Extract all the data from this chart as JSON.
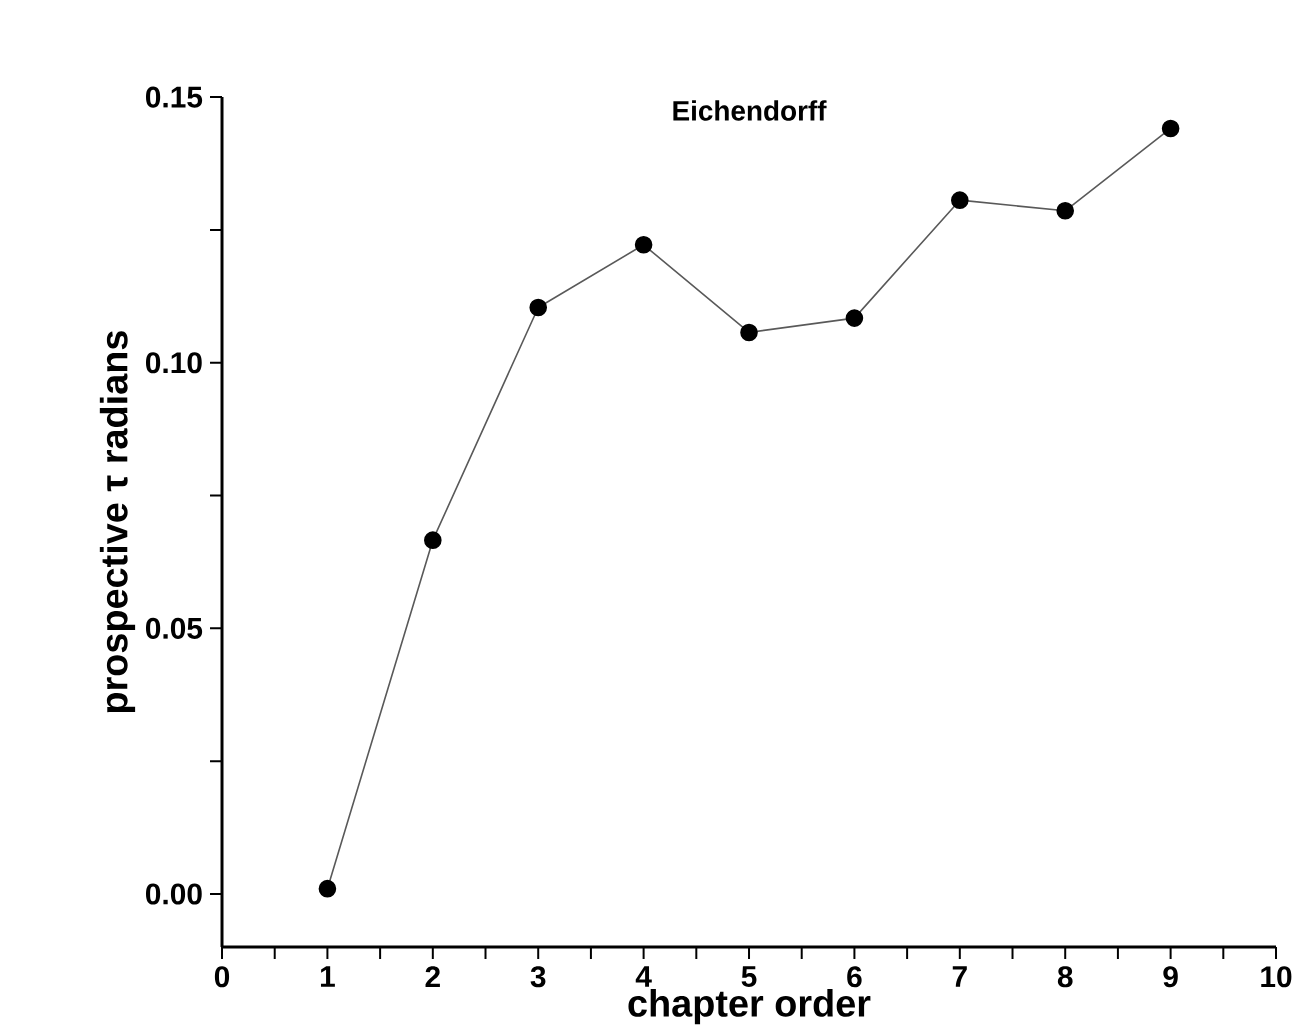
{
  "chart_data": {
    "type": "line",
    "title": "Eichendorff",
    "xlabel": "chapter order",
    "ylabel": "prospective τ radians",
    "x": [
      1,
      2,
      3,
      4,
      5,
      6,
      7,
      8,
      9
    ],
    "series": [
      {
        "color": "#000000",
        "values": [
          0.001,
          0.0666,
          0.1104,
          0.1222,
          0.1057,
          0.1084,
          0.1306,
          0.1286,
          0.1441
        ]
      }
    ],
    "xlim": [
      0,
      10
    ],
    "ylim": [
      -0.01,
      0.15
    ],
    "xticks": [
      0,
      {
        "value": 0.5,
        "label": null
      },
      1,
      {
        "value": 1.5,
        "label": null
      },
      2,
      {
        "value": 2.5,
        "label": null
      },
      3,
      {
        "value": 3.5,
        "label": null
      },
      4,
      {
        "value": 4.5,
        "label": null
      },
      5,
      {
        "value": 5.5,
        "label": null
      },
      6,
      {
        "value": 6.5,
        "label": null
      },
      7,
      {
        "value": 7.5,
        "label": null
      },
      8,
      {
        "value": 8.5,
        "label": null
      },
      9,
      {
        "value": 9.5,
        "label": null
      },
      10
    ],
    "yticks": [
      {
        "value": 0,
        "label": "0.00"
      },
      {
        "value": 0.025,
        "label": null
      },
      {
        "value": 0.05,
        "label": "0.05"
      },
      {
        "value": 0.075,
        "label": null
      },
      {
        "value": 0.1,
        "label": "0.10"
      },
      {
        "value": 0.125,
        "label": null
      },
      {
        "value": 0.15,
        "label": "0.15"
      }
    ],
    "marker": "circle",
    "line_style": "solid",
    "grid": false
  }
}
